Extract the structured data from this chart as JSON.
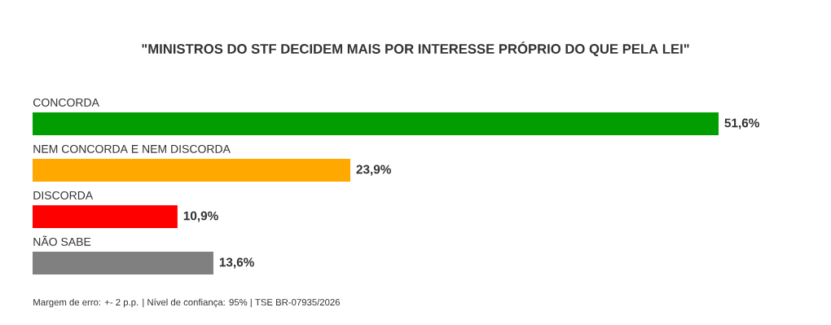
{
  "chart_data": {
    "type": "bar",
    "orientation": "horizontal",
    "title": "\"MINISTROS DO STF DECIDEM MAIS POR INTERESSE PRÓPRIO DO QUE PELA LEI\"",
    "categories": [
      "CONCORDA",
      "NEM CONCORDA E NEM DISCORDA",
      "DISCORDA",
      "NÃO SABE"
    ],
    "values": [
      51.6,
      23.9,
      10.9,
      13.6
    ],
    "value_labels": [
      "51,6%",
      "23,9%",
      "10,9%",
      "13,6%"
    ],
    "colors": [
      "#009e00",
      "#ffa800",
      "#ff0000",
      "#808080"
    ],
    "annotations": [
      "Margem de erro: +- 2 p.p. | Nível de confiança: 95% | TSE BR-07935/2026"
    ]
  }
}
